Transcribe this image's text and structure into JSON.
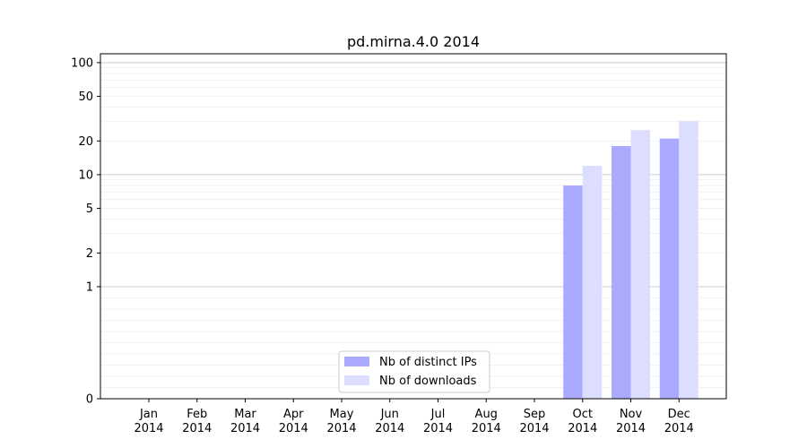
{
  "chart_data": {
    "type": "bar",
    "title": "pd.mirna.4.0 2014",
    "xlabel": "",
    "ylabel": "",
    "y_scale": "symlog",
    "ylim": [
      0,
      120
    ],
    "y_ticks": [
      0,
      1,
      2,
      5,
      10,
      20,
      50,
      100
    ],
    "categories": [
      "Jan\n2014",
      "Feb\n2014",
      "Mar\n2014",
      "Apr\n2014",
      "May\n2014",
      "Jun\n2014",
      "Jul\n2014",
      "Aug\n2014",
      "Sep\n2014",
      "Oct\n2014",
      "Nov\n2014",
      "Dec\n2014"
    ],
    "series": [
      {
        "name": "Nb of distinct IPs",
        "color": "#aaaaff",
        "values": [
          0,
          0,
          0,
          0,
          0,
          0,
          0,
          0,
          0,
          8,
          18,
          21
        ]
      },
      {
        "name": "Nb of downloads",
        "color": "#ddddff",
        "values": [
          0,
          0,
          0,
          0,
          0,
          0,
          0,
          0,
          0,
          12,
          25,
          30
        ]
      }
    ],
    "grid": true,
    "legend": "bottom-center"
  }
}
